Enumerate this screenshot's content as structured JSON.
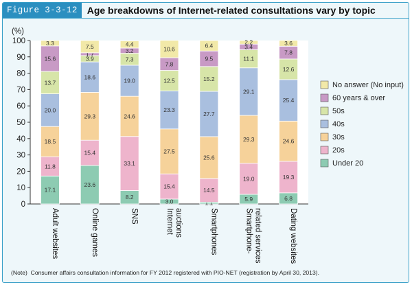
{
  "figure_label": "Figure 3-3-12",
  "note": "(Note)  Consumer affairs consultation information for FY 2012 registered with PIO-NET (registration by April 30, 2013).",
  "colors": {
    "Under 20": "#8dcbb2",
    "20s": "#eeb4cc",
    "30s": "#f6d29a",
    "40s": "#a9bfdf",
    "50s": "#d7e5a8",
    "60 years & over": "#c89ac5",
    "No answer (No input)": "#f2e9a8"
  },
  "chart_data": {
    "type": "bar",
    "stacked": true,
    "title": "Age breakdowns of Internet-related consultations vary by topic",
    "ylabel": "(%)",
    "ylim": [
      0,
      100
    ],
    "yticks": [
      0,
      10,
      20,
      30,
      40,
      50,
      60,
      70,
      80,
      90,
      100
    ],
    "categories": [
      "Adult websites",
      "Online games",
      "SNS",
      "Internet auctions",
      "Smartphones",
      "Smartphone-related services",
      "Dating websites"
    ],
    "category_labels": [
      [
        "Adult websites"
      ],
      [
        "Online games"
      ],
      [
        "SNS"
      ],
      [
        "Internet",
        "auctions"
      ],
      [
        "Smartphones"
      ],
      [
        "Smartphone-",
        "related services"
      ],
      [
        "Dating websites"
      ]
    ],
    "series": [
      {
        "name": "Under 20",
        "values": [
          17.1,
          23.6,
          8.2,
          3.0,
          1.1,
          5.9,
          6.8
        ]
      },
      {
        "name": "20s",
        "values": [
          11.8,
          15.4,
          33.1,
          15.4,
          14.5,
          19.0,
          19.3
        ]
      },
      {
        "name": "30s",
        "values": [
          18.5,
          29.3,
          24.6,
          27.5,
          25.6,
          29.3,
          24.6
        ]
      },
      {
        "name": "40s",
        "values": [
          20.0,
          18.6,
          19.0,
          23.3,
          27.7,
          29.1,
          25.4
        ]
      },
      {
        "name": "50s",
        "values": [
          13.7,
          3.9,
          7.3,
          12.5,
          15.2,
          11.1,
          12.6
        ]
      },
      {
        "name": "60 years & over",
        "values": [
          15.6,
          1.7,
          3.2,
          7.8,
          9.5,
          3.4,
          7.8
        ]
      },
      {
        "name": "No answer (No input)",
        "values": [
          3.3,
          7.5,
          4.4,
          10.6,
          6.4,
          2.2,
          3.6
        ]
      }
    ],
    "legend": [
      "No answer (No input)",
      "60 years & over",
      "50s",
      "40s",
      "30s",
      "20s",
      "Under 20"
    ],
    "legend_position": "right"
  }
}
